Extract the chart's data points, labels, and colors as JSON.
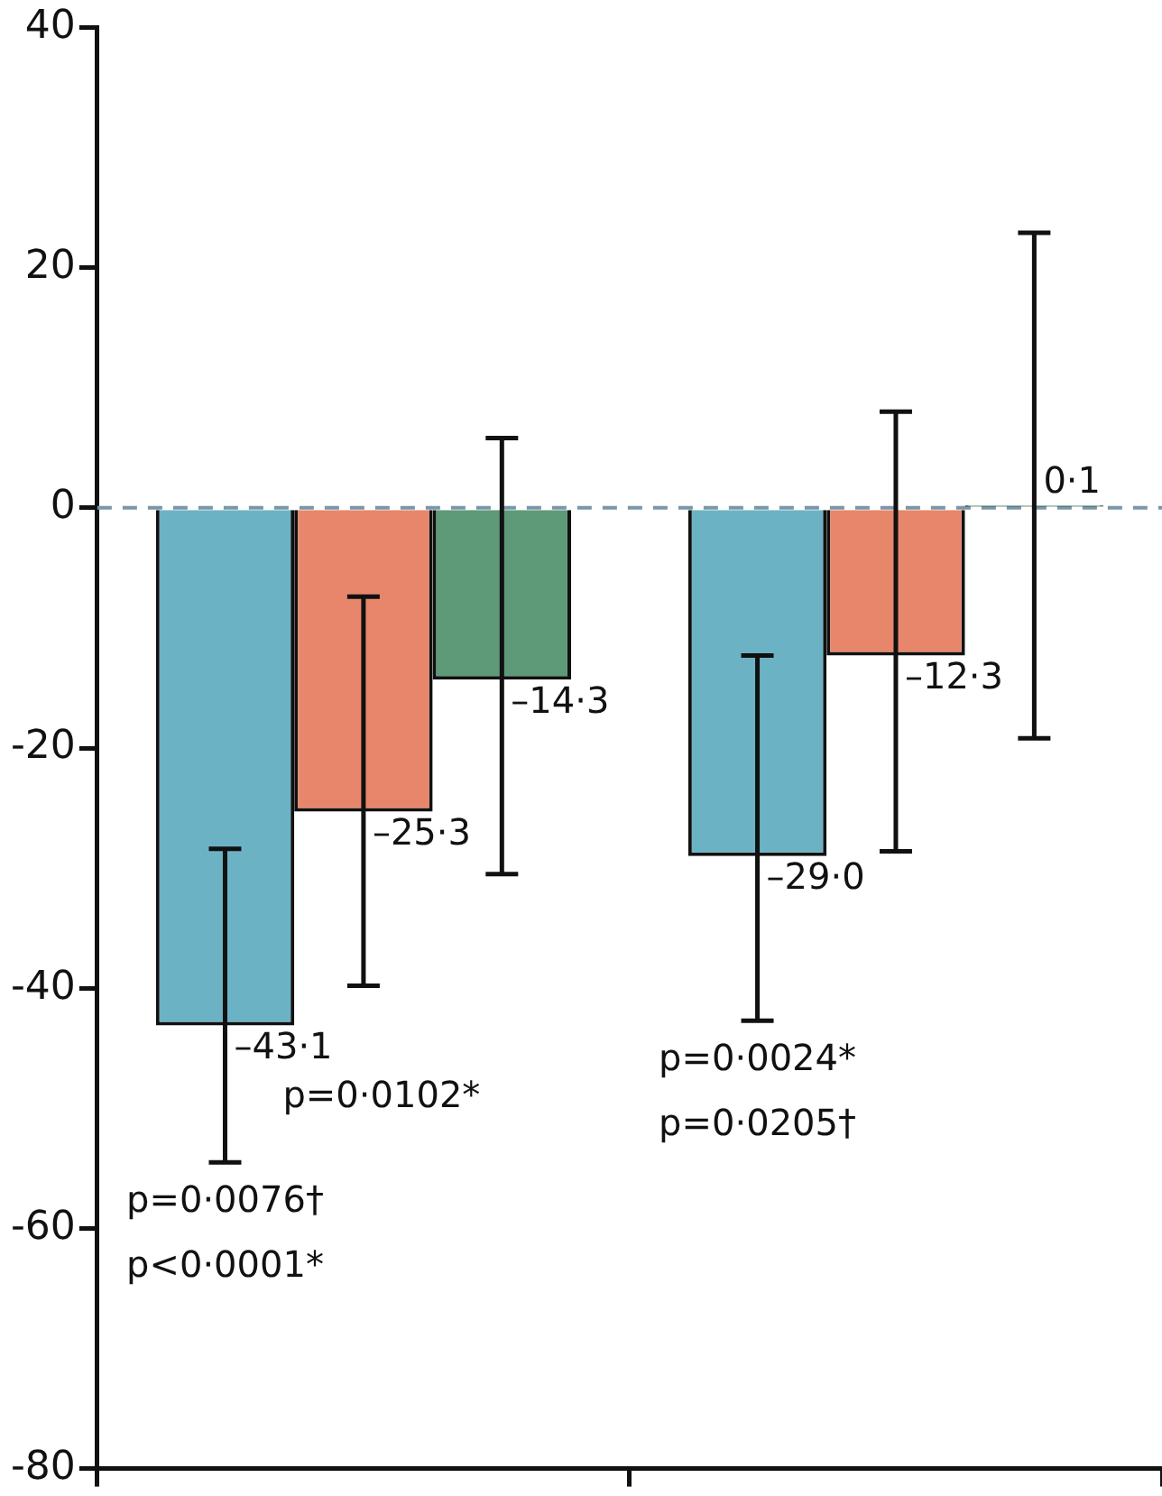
{
  "chart_data": {
    "type": "bar",
    "categories": [
      null,
      null
    ],
    "series": [
      {
        "color": "#6bb3c4",
        "values": [
          -43.1,
          -29.0
        ],
        "errors": [
          [
            -54.5,
            -28.4
          ],
          [
            -42.7,
            -12.3
          ]
        ],
        "value_labels": [
          "–43·1",
          "–29·0"
        ]
      },
      {
        "color": "#e8866c",
        "values": [
          -25.3,
          -12.3
        ],
        "errors": [
          [
            -39.8,
            -7.4
          ],
          [
            -28.6,
            8.0
          ]
        ],
        "value_labels": [
          "–25·3",
          "–12·3"
        ]
      },
      {
        "color": "#5e9a78",
        "values": [
          -14.3,
          0.1
        ],
        "errors": [
          [
            -30.5,
            5.8
          ],
          [
            -19.2,
            22.9
          ]
        ],
        "value_labels": [
          "–14·3",
          "0·1"
        ]
      }
    ],
    "ylim": [
      -80,
      40
    ],
    "yticks": [
      -80,
      -60,
      -40,
      -20,
      0,
      20,
      40
    ],
    "tick_labels": "y",
    "grid": false,
    "legend": false,
    "ref_lines": [
      {
        "axis": "y",
        "value": 0,
        "color": "#7a97a8",
        "line_style": "dashed"
      }
    ],
    "annotations": [
      "p=0·0102*",
      "p=0·0076†",
      "p<0·0001*",
      "p=0·0024*",
      "p=0·0205†"
    ]
  }
}
